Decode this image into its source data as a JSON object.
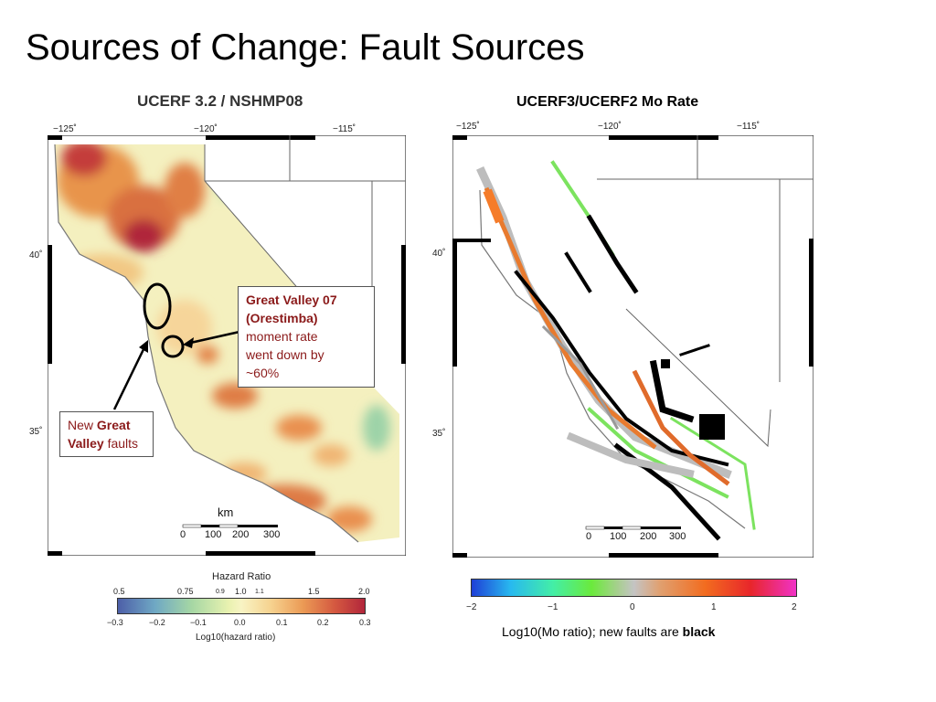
{
  "slide": {
    "title": "Sources of Change: Fault Sources"
  },
  "left_map": {
    "title": "UCERF 3.2 / NSHMP08",
    "lon_ticks": [
      "−125˚",
      "−120˚",
      "−115˚"
    ],
    "lat_ticks": [
      "40˚",
      "35˚"
    ],
    "scale_label": "km",
    "scale_ticks": [
      "0",
      "100",
      "200",
      "300"
    ],
    "callout_orestimba": {
      "line1": "Great Valley 07",
      "line2": "(Orestimba)",
      "line3": "moment rate",
      "line4": "went down by",
      "line5": "~60%"
    },
    "callout_new": {
      "pre": "New ",
      "bold1": "Great",
      "bold2": "Valley",
      "post": " faults"
    },
    "colorbar": {
      "title": "Hazard Ratio",
      "top_ticks": [
        "0.5",
        "0.75",
        "0.9",
        "1.0",
        "1.1",
        "1.5",
        "2.0"
      ],
      "bottom_ticks": [
        "−0.3",
        "−0.2",
        "−0.1",
        "0.0",
        "0.1",
        "0.2",
        "0.3"
      ],
      "label": "Log10(hazard ratio)"
    }
  },
  "right_map": {
    "title": "UCERF3/UCERF2 Mo Rate",
    "lon_ticks": [
      "−125˚",
      "−120˚",
      "−115˚"
    ],
    "lat_ticks": [
      "40˚",
      "35˚"
    ],
    "scale_ticks": [
      "0",
      "100",
      "200",
      "300"
    ],
    "colorbar": {
      "ticks": [
        "−2",
        "−1",
        "0",
        "1",
        "2"
      ],
      "caption_pre": "Log10(Mo ratio); new faults are ",
      "caption_bold": "black"
    }
  },
  "colors": {
    "callout_text": "#8b1a1a",
    "new_fault": "#000000"
  }
}
